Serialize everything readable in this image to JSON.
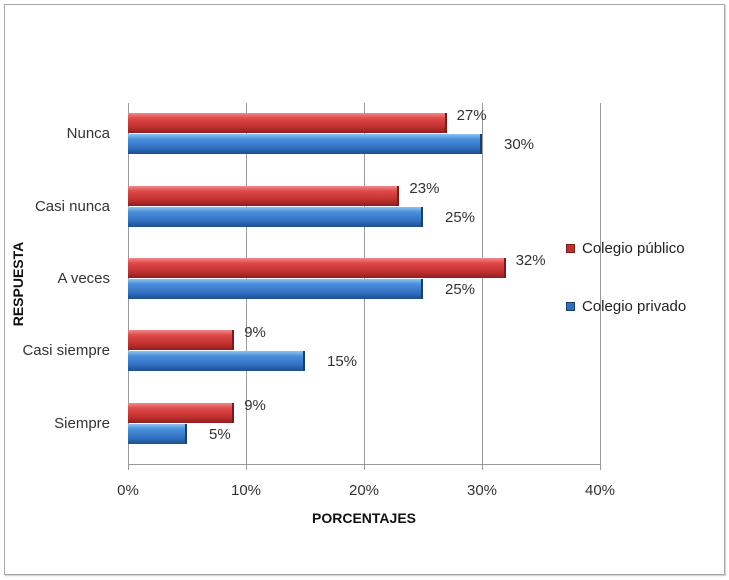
{
  "chart_data": {
    "type": "bar",
    "orientation": "horizontal",
    "title": "",
    "xlabel": "PORCENTAJES",
    "ylabel": "RESPUESTA",
    "categories": [
      "Nunca",
      "Casi nunca",
      "A veces",
      "Casi siempre",
      "Siempre"
    ],
    "series": [
      {
        "name": "Colegio público",
        "color": "#c0302e",
        "values": [
          27,
          23,
          32,
          9,
          9
        ],
        "labels": [
          "27%",
          "23%",
          "32%",
          "9%",
          "9%"
        ]
      },
      {
        "name": "Colegio privado",
        "color": "#2f6fc0",
        "values": [
          30,
          25,
          25,
          15,
          5
        ],
        "labels": [
          "30%",
          "25%",
          "25%",
          "15%",
          "5%"
        ]
      }
    ],
    "xlim": [
      0,
      40
    ],
    "xticks": [
      "0%",
      "10%",
      "20%",
      "30%",
      "40%"
    ],
    "grid": true,
    "legend_position": "right"
  },
  "legend": {
    "public": "Colegio público",
    "private": "Colegio privado"
  }
}
